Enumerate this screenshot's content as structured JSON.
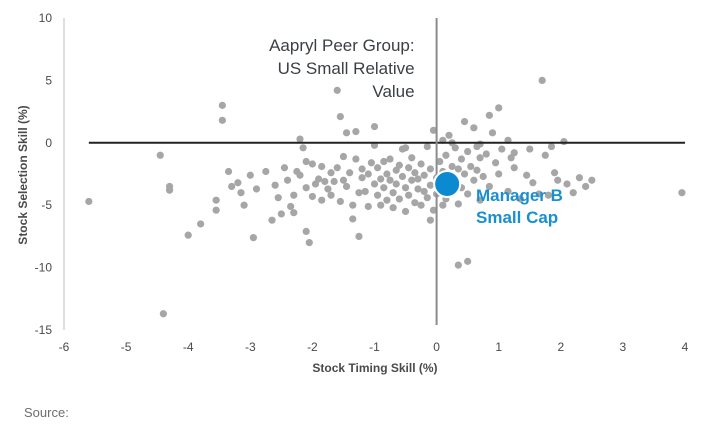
{
  "chart_data": {
    "type": "scatter",
    "title": "",
    "xlabel": "Stock Timing Skill (%)",
    "ylabel": "Stock Selection Skill (%)",
    "xlim": [
      -6,
      4
    ],
    "ylim": [
      -15,
      10
    ],
    "xticks": [
      -6,
      -5,
      -4,
      -3,
      -2,
      -1,
      0,
      1,
      2,
      3,
      4
    ],
    "yticks": [
      -15,
      -10,
      -5,
      0,
      5,
      10
    ],
    "grid": false,
    "colors": {
      "peer": "#a6a6a6",
      "manager": "#0b8ad1",
      "manager_label": "#1a8fd0",
      "ref_line": "#222222",
      "vert_line": "#8c8c8c"
    },
    "annotation": {
      "lines": [
        "Aapryl Peer Group:",
        "US Small Relative",
        "Value"
      ]
    },
    "highlight": {
      "name_lines": [
        "Manager B",
        "Small Cap"
      ],
      "x": 0.17,
      "y": -3.3
    },
    "series": [
      {
        "points": [
          [
            -5.6,
            -4.7
          ],
          [
            -4.4,
            -13.7
          ],
          [
            -4.45,
            -1.0
          ],
          [
            -4.3,
            -3.5
          ],
          [
            -4.3,
            -3.8
          ],
          [
            -4.0,
            -7.4
          ],
          [
            -3.8,
            -6.5
          ],
          [
            -3.55,
            -4.6
          ],
          [
            -3.55,
            -5.4
          ],
          [
            -3.45,
            3.0
          ],
          [
            -3.45,
            1.8
          ],
          [
            -3.35,
            -2.3
          ],
          [
            -3.3,
            -3.5
          ],
          [
            -3.2,
            -3.2
          ],
          [
            -3.15,
            -4.0
          ],
          [
            -3.1,
            -5.0
          ],
          [
            -3.0,
            -2.6
          ],
          [
            -2.95,
            -7.6
          ],
          [
            -2.9,
            -3.7
          ],
          [
            -2.75,
            -2.3
          ],
          [
            -2.65,
            -6.2
          ],
          [
            -2.6,
            -3.4
          ],
          [
            -2.55,
            -4.4
          ],
          [
            -2.5,
            -5.7
          ],
          [
            -2.45,
            -2.0
          ],
          [
            -2.4,
            -3.0
          ],
          [
            -2.35,
            -5.1
          ],
          [
            -2.3,
            -4.2
          ],
          [
            -2.3,
            -5.6
          ],
          [
            -2.25,
            -2.3
          ],
          [
            -2.2,
            0.3
          ],
          [
            -2.2,
            -2.6
          ],
          [
            -2.15,
            -0.4
          ],
          [
            -2.1,
            -1.5
          ],
          [
            -2.1,
            -3.6
          ],
          [
            -2.1,
            -7.1
          ],
          [
            -2.05,
            -8.0
          ],
          [
            -2.0,
            -4.3
          ],
          [
            -2.0,
            -1.7
          ],
          [
            -1.95,
            -3.3
          ],
          [
            -1.9,
            -2.9
          ],
          [
            -1.85,
            -4.6
          ],
          [
            -1.85,
            -1.9
          ],
          [
            -1.8,
            -3.1
          ],
          [
            -1.75,
            -3.7
          ],
          [
            -1.7,
            -2.4
          ],
          [
            -1.7,
            -4.2
          ],
          [
            -1.65,
            -3.1
          ],
          [
            -1.6,
            -2.0
          ],
          [
            -1.55,
            -4.7
          ],
          [
            -1.5,
            -3.0
          ],
          [
            -1.5,
            -1.1
          ],
          [
            -1.45,
            0.8
          ],
          [
            -1.45,
            -3.5
          ],
          [
            -1.4,
            -2.4
          ],
          [
            -1.35,
            -5.0
          ],
          [
            -1.35,
            -6.1
          ],
          [
            -1.3,
            -1.3
          ],
          [
            -1.25,
            -4.0
          ],
          [
            -1.25,
            -7.5
          ],
          [
            -1.2,
            -2.1
          ],
          [
            -1.2,
            -2.8
          ],
          [
            -1.15,
            -3.9
          ],
          [
            -1.1,
            -2.5
          ],
          [
            -1.1,
            -5.1
          ],
          [
            -1.05,
            -1.6
          ],
          [
            -1.0,
            -3.3
          ],
          [
            -1.0,
            1.3
          ],
          [
            -0.95,
            -2.0
          ],
          [
            -0.95,
            -4.2
          ],
          [
            -0.9,
            -2.9
          ],
          [
            -0.9,
            -5.0
          ],
          [
            -0.85,
            -1.5
          ],
          [
            -0.85,
            -3.6
          ],
          [
            -0.8,
            -2.5
          ],
          [
            -0.8,
            -4.6
          ],
          [
            -0.75,
            -1.3
          ],
          [
            -0.75,
            -3.0
          ],
          [
            -0.7,
            -4.0
          ],
          [
            -0.7,
            -5.2
          ],
          [
            -0.65,
            -2.2
          ],
          [
            -0.65,
            -3.3
          ],
          [
            -0.6,
            -1.8
          ],
          [
            -0.6,
            -4.5
          ],
          [
            -0.55,
            -2.7
          ],
          [
            -0.55,
            -0.5
          ],
          [
            -0.5,
            -3.6
          ],
          [
            -0.5,
            -5.5
          ],
          [
            -0.45,
            -2.0
          ],
          [
            -0.45,
            -4.2
          ],
          [
            -0.4,
            -3.0
          ],
          [
            -0.4,
            -1.2
          ],
          [
            -0.35,
            -2.4
          ],
          [
            -0.35,
            -4.8
          ],
          [
            -0.3,
            -3.7
          ],
          [
            -0.3,
            -2.9
          ],
          [
            -0.25,
            -1.7
          ],
          [
            -0.25,
            -5.0
          ],
          [
            -0.2,
            -2.6
          ],
          [
            -0.2,
            -3.9
          ],
          [
            -0.15,
            -0.3
          ],
          [
            -0.15,
            -4.4
          ],
          [
            -0.1,
            -2.1
          ],
          [
            -0.1,
            -3.4
          ],
          [
            -0.1,
            -6.2
          ],
          [
            -0.05,
            1.0
          ],
          [
            -0.05,
            -5.4
          ],
          [
            0.0,
            -2.8
          ],
          [
            0.0,
            -4.1
          ],
          [
            0.05,
            -1.5
          ],
          [
            0.05,
            -3.6
          ],
          [
            0.1,
            0.2
          ],
          [
            0.1,
            -2.3
          ],
          [
            0.1,
            -5.0
          ],
          [
            0.15,
            -1.0
          ],
          [
            0.15,
            -4.5
          ],
          [
            0.2,
            -2.6
          ],
          [
            0.2,
            0.6
          ],
          [
            0.25,
            -1.9
          ],
          [
            0.25,
            -4.0
          ],
          [
            0.3,
            -0.4
          ],
          [
            0.3,
            -3.0
          ],
          [
            0.35,
            -2.1
          ],
          [
            0.35,
            -4.9
          ],
          [
            0.35,
            -9.8
          ],
          [
            0.4,
            -1.3
          ],
          [
            0.4,
            -3.6
          ],
          [
            0.45,
            1.7
          ],
          [
            0.45,
            -2.5
          ],
          [
            0.5,
            -0.7
          ],
          [
            0.5,
            -4.1
          ],
          [
            0.5,
            -9.5
          ],
          [
            0.55,
            -1.9
          ],
          [
            0.6,
            1.2
          ],
          [
            0.6,
            -3.0
          ],
          [
            0.65,
            -0.3
          ],
          [
            0.65,
            -2.2
          ],
          [
            0.7,
            -1.2
          ],
          [
            0.7,
            -4.6
          ],
          [
            0.75,
            -2.7
          ],
          [
            0.8,
            -0.9
          ],
          [
            0.85,
            2.2
          ],
          [
            0.85,
            -3.5
          ],
          [
            0.9,
            0.8
          ],
          [
            0.95,
            -1.6
          ],
          [
            1.0,
            2.8
          ],
          [
            1.0,
            -2.5
          ],
          [
            1.05,
            -0.5
          ],
          [
            1.15,
            -3.9
          ],
          [
            1.2,
            -1.2
          ],
          [
            1.25,
            -2.0
          ],
          [
            1.35,
            -4.5
          ],
          [
            1.45,
            -2.6
          ],
          [
            1.55,
            -3.2
          ],
          [
            1.65,
            -4.1
          ],
          [
            1.7,
            5.0
          ],
          [
            1.75,
            -1.0
          ],
          [
            1.8,
            -4.2
          ],
          [
            1.9,
            -2.4
          ],
          [
            1.95,
            -3.0
          ],
          [
            2.05,
            0.1
          ],
          [
            2.1,
            -3.3
          ],
          [
            2.2,
            -4.0
          ],
          [
            2.3,
            -2.8
          ],
          [
            2.4,
            -3.5
          ],
          [
            2.5,
            -3.0
          ],
          [
            3.95,
            -4.0
          ],
          [
            -1.6,
            4.2
          ],
          [
            -1.55,
            2.1
          ],
          [
            -1.3,
            0.9
          ],
          [
            -1.0,
            -0.2
          ],
          [
            -0.5,
            -0.4
          ],
          [
            0.25,
            0.0
          ],
          [
            0.7,
            -0.1
          ],
          [
            1.15,
            0.2
          ],
          [
            1.25,
            -0.8
          ],
          [
            1.5,
            -0.5
          ],
          [
            1.85,
            -0.3
          ]
        ]
      }
    ]
  },
  "footer": {
    "source_label": "Source:"
  }
}
